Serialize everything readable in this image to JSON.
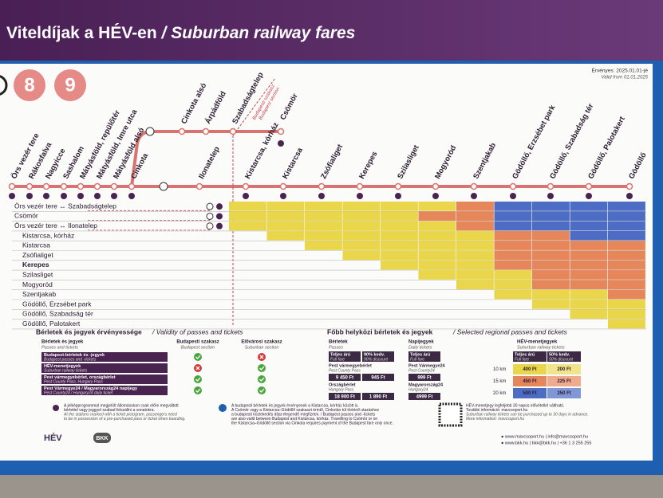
{
  "header": {
    "title_hu": "Viteldíjak a HÉV-en",
    "title_sep": " / ",
    "title_en": "Suburban railway fares",
    "lines": [
      "8",
      "9"
    ],
    "valid_hu": "Érvényes: 2025.01.01-jé",
    "valid_en": "Valid from 01.01.2025"
  },
  "map": {
    "stations": [
      "Örs vezér tere",
      "Rákosfalva",
      "Nagyicce",
      "Sashalom",
      "Mátyásföld, repülőtér",
      "Mátyásföld, Imre utca",
      "Mátyásföld alsó",
      "Cinkota",
      "Ilonatelep",
      "Kistarcsa, kórház",
      "Kistarcsa",
      "Zsófialiget",
      "Kerepes",
      "Szilasliget",
      "Mogyoród",
      "Szentjakab",
      "Gödöllő, Erzsébet park",
      "Gödöllő, Szabadság tér",
      "Gödöllő, Palotakert",
      "Gödöllő"
    ],
    "branch": [
      "Cinkota alsó",
      "Árpádföld",
      "Szabadságtelep",
      "Csömör"
    ],
    "zone": [
      "Budapesti szakasz",
      "Budapest section"
    ]
  },
  "matrix": {
    "rows": [
      "Örs vezér tere ↔ Szabadságtelep",
      "Csömör",
      "Örs vezér tere ↔ Ilonatelep",
      "Kistarcsa, kórház",
      "Kistarcsa",
      "Zsófialiget",
      "Kerepes",
      "Szilasliget",
      "Mogyoród",
      "Szentjakab",
      "Gödöllő, Erzsébet park",
      "Gödöllő, Szabadság tér",
      "Gödöllő, Palotakert"
    ]
  },
  "validity": {
    "title_hu": "Bérletek és jegyek érvényessége",
    "title_en": " / Validity of passes and tickets",
    "columns": [
      [
        "Bérletek és jegyek",
        "Passes and tickets"
      ],
      [
        "Budapesti szakasz",
        "Budapest section"
      ],
      [
        "Elővárosi szakasz",
        "Suburban section"
      ]
    ],
    "rows": [
      {
        "hu": "Budapest-bérletek és -jegyek",
        "en": "Budapest passes and -tickets",
        "valid": [
          true,
          false
        ]
      },
      {
        "hu": "HÉV-menetjegyek",
        "en": "Suburban railway tickets",
        "valid": [
          false,
          true
        ]
      },
      {
        "hu": "Pest vármegyebérlet, országbérlet",
        "en": "Pest County Pass, Hungary Pass",
        "valid": [
          true,
          true
        ]
      },
      {
        "hu": "Pest Vármegye24 / Magyarország24 napijegy",
        "en": "Pest County24 / Hungary24 daily ticket",
        "valid": [
          true,
          true
        ]
      }
    ]
  },
  "regional": {
    "title_hu": "Főbb helyközi bérletek és jegyek",
    "title_en": " / Selected regional passes and tickets",
    "passes": {
      "head": [
        "Bérletek",
        "Passes"
      ],
      "cols": [
        [
          "Teljes árú",
          "Full fare"
        ],
        [
          "90% kedv.",
          "90% discount"
        ]
      ],
      "rows": [
        {
          "hu": "Pest vármegyebérlet",
          "en": "Pest County Pass",
          "prices": [
            "9 450 Ft",
            "945 Ft"
          ]
        },
        {
          "hu": "Országbérlet",
          "en": "Hungary Pass",
          "prices": [
            "18 900 Ft",
            "1 890 Ft"
          ]
        }
      ]
    },
    "daily": {
      "head": [
        "Napijegyek",
        "Daily tickets"
      ],
      "cols": [
        [
          "Teljes árú",
          "Full fare"
        ]
      ],
      "rows": [
        {
          "hu": "Pest Vármegye24",
          "en": "Pest County24",
          "prices": [
            "999 Ft"
          ]
        },
        {
          "hu": "Magyarország24",
          "en": "Hungary24",
          "prices": [
            "4999 Ft"
          ]
        }
      ]
    }
  },
  "hev_tickets": {
    "head": [
      "HÉV-menetjegyek",
      "Suburban railway tickets"
    ],
    "cols": [
      [
        "Teljes árú",
        "Full fare"
      ],
      [
        "50% kedv.",
        "50% discount"
      ]
    ],
    "rows": [
      {
        "dist": "10 km",
        "prices": [
          "400 Ft",
          "200 Ft"
        ]
      },
      {
        "dist": "15 km",
        "prices": [
          "450 Ft",
          "225 Ft"
        ]
      },
      {
        "dist": "20 km",
        "prices": [
          "500 Ft",
          "250 Ft"
        ]
      }
    ]
  },
  "notes": [
    [
      "A jelképprogrammal megjelölt állomásokon csak előre megváltott",
      "bérlettel vagy jeggyel szabad felszállni a vonatokra.",
      "At the stations marked with a ticket pictogram, passengers need",
      "to be in possession of a pre-purchased pass or ticket when boarding."
    ],
    [
      "A budapesti bérletek és jegyek érvényesek a Kistarcsa, kórház között is.",
      "A Csömör vagy a Kistarcsa–Gödöllő szakaszt érintő, Cinkotán túl történő utazáshoz",
      "a budapesti közlekedés díjat elegendő megfizetni. / Budapest passes and -tickets",
      "are also valid between Budapest and Kistarcsa, kórház. Travelling to Csömör or on",
      "the Kistarcsa–Gödöllő section via Cinkota requires payment of the Budapest fare only once."
    ],
    [
      "HÉV-menetjegy legfeljebb 30 napos elővétellel váltható.",
      "További információ: mavcsoport.hu",
      "Suburban railway tickets can be purchased up to 30 days in advance.",
      "More information: mavcsoport.hu"
    ]
  ],
  "footer": {
    "logo_hev": "HÉV",
    "logo_bkk": "BKK",
    "web1": "● www.mavcsoport.hu | info@mavcsoport.hu",
    "web2": "● www.bkk.hu | bkk@bkk.hu | +36 1 3 255 255"
  }
}
